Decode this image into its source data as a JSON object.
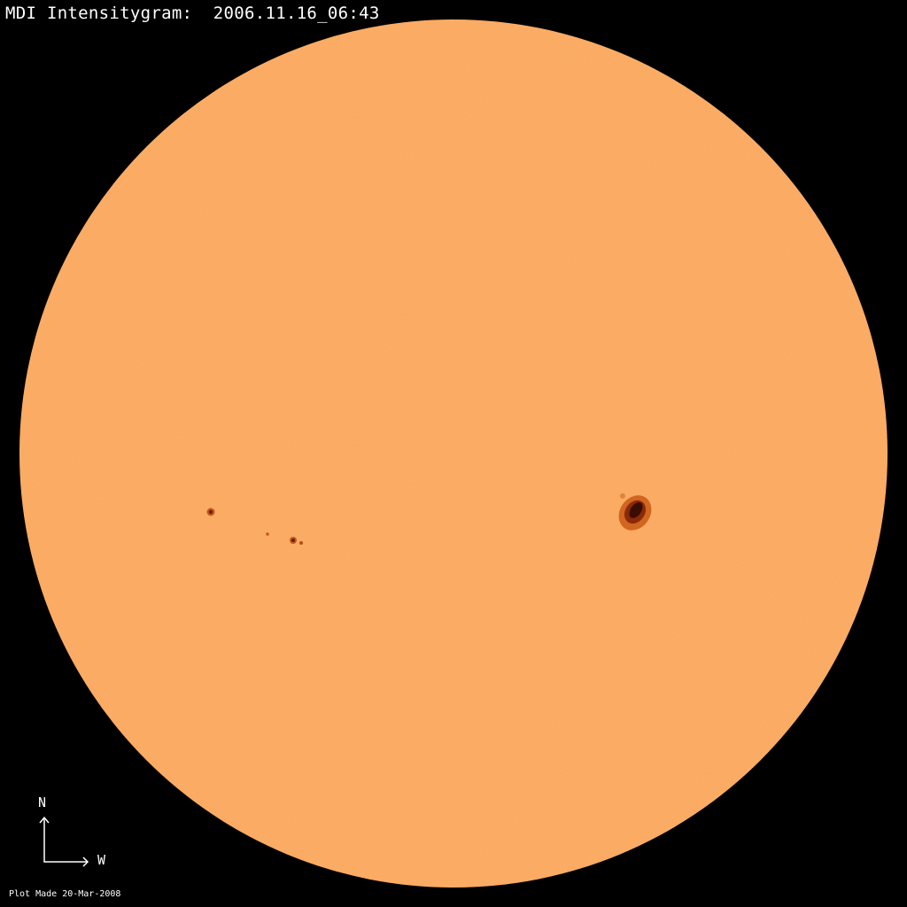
{
  "title": "MDI Intensitygram:  2006.11.16_06:43",
  "footer": "Plot Made 20-Mar-2008",
  "compass": {
    "north_label": "N",
    "west_label": "W"
  },
  "colors": {
    "background": "#000000",
    "disk": "#fba85e",
    "umbra": "#3a0d02",
    "penumbra": "#c4581a"
  }
}
